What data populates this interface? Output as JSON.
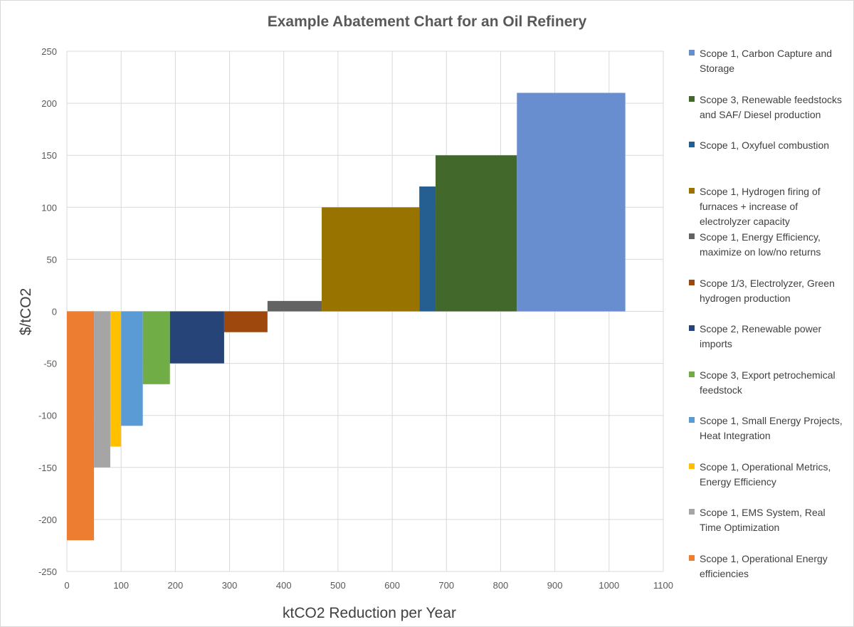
{
  "chart_data": {
    "type": "bar",
    "subtype": "variable-width (marginal abatement cost curve)",
    "title": "Example Abatement Chart for an Oil Refinery",
    "xlabel": "ktCO2 Reduction per Year",
    "ylabel": "$/tCO2",
    "xlim": [
      0,
      1100
    ],
    "ylim": [
      -250,
      250
    ],
    "xticks": [
      0,
      100,
      200,
      300,
      400,
      500,
      600,
      700,
      800,
      900,
      1000,
      1100
    ],
    "yticks": [
      250,
      200,
      150,
      100,
      50,
      0,
      -50,
      -100,
      -150,
      -200,
      -250
    ],
    "grid": true,
    "legend_placement": "right",
    "series": [
      {
        "name": "Scope 1, Operational Energy efficiencies",
        "x_start": 0,
        "x_end": 50,
        "value": -220,
        "color": "#ED7D31"
      },
      {
        "name": "Scope 1, EMS System, Real Time Optimization",
        "x_start": 50,
        "x_end": 80,
        "value": -150,
        "color": "#A5A5A5"
      },
      {
        "name": "Scope 1, Operational Metrics, Energy Efficiency",
        "x_start": 80,
        "x_end": 100,
        "value": -130,
        "color": "#FFC000"
      },
      {
        "name": "Scope 1, Small Energy Projects, Heat Integration",
        "x_start": 100,
        "x_end": 140,
        "value": -110,
        "color": "#5B9BD5"
      },
      {
        "name": "Scope 3, Export petrochemical feedstock",
        "x_start": 140,
        "x_end": 190,
        "value": -70,
        "color": "#70AD47"
      },
      {
        "name": "Scope 2, Renewable power imports",
        "x_start": 190,
        "x_end": 290,
        "value": -50,
        "color": "#264478"
      },
      {
        "name": "Scope 1/3, Electrolyzer, Green hydrogen production",
        "x_start": 290,
        "x_end": 370,
        "value": -20,
        "color": "#9E480E"
      },
      {
        "name": "Scope 1, Energy Efficiency, maximize on low/no returns",
        "x_start": 370,
        "x_end": 470,
        "value": 10,
        "color": "#636363"
      },
      {
        "name": "Scope 1, Hydrogen firing of furnaces + increase of electrolyzer capacity",
        "x_start": 470,
        "x_end": 650,
        "value": 100,
        "color": "#997300"
      },
      {
        "name": "Scope 1, Oxyfuel combustion",
        "x_start": 650,
        "x_end": 680,
        "value": 120,
        "color": "#255E91"
      },
      {
        "name": "Scope 3, Renewable feedstocks and SAF/ Diesel production",
        "x_start": 680,
        "x_end": 830,
        "value": 150,
        "color": "#43682B"
      },
      {
        "name": "Scope 1, Carbon Capture and Storage",
        "x_start": 830,
        "x_end": 1030,
        "value": 210,
        "color": "#698ED0"
      }
    ]
  }
}
